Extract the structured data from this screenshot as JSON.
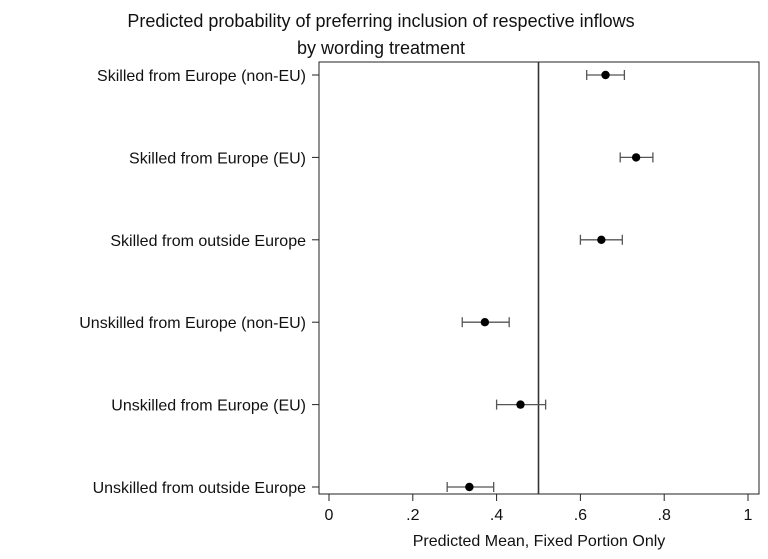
{
  "chart_data": {
    "type": "scatter",
    "title": "Predicted probability of preferring inclusion of respective inflows",
    "subtitle": "by wording treatment",
    "xlabel": "Predicted Mean, Fixed Portion Only",
    "ylabel": "",
    "xlim": [
      0,
      1
    ],
    "xticks": [
      0,
      0.2,
      0.4,
      0.6,
      0.8,
      1
    ],
    "xtick_labels": [
      "0",
      ".2",
      ".4",
      ".6",
      ".8",
      "1"
    ],
    "reference_line_x": 0.5,
    "grid": false,
    "legend": "none",
    "colors": {
      "marker": "#000000",
      "errorbar": "#555555",
      "axis": "#222222",
      "refline": "#333333"
    },
    "categories": [
      "Skilled from Europe (non-EU)",
      "Skilled from Europe (EU)",
      "Skilled from outside Europe",
      "Unskilled from Europe (non-EU)",
      "Unskilled from Europe (EU)",
      "Unskilled from outside Europe"
    ],
    "points": [
      {
        "category": "Skilled from Europe (non-EU)",
        "mean": 0.66,
        "lower": 0.615,
        "upper": 0.705
      },
      {
        "category": "Skilled from Europe (EU)",
        "mean": 0.733,
        "lower": 0.695,
        "upper": 0.773
      },
      {
        "category": "Skilled from outside Europe",
        "mean": 0.65,
        "lower": 0.6,
        "upper": 0.7
      },
      {
        "category": "Unskilled from Europe (non-EU)",
        "mean": 0.372,
        "lower": 0.318,
        "upper": 0.43
      },
      {
        "category": "Unskilled from Europe (EU)",
        "mean": 0.457,
        "lower": 0.4,
        "upper": 0.517
      },
      {
        "category": "Unskilled from outside Europe",
        "mean": 0.335,
        "lower": 0.282,
        "upper": 0.393
      }
    ]
  }
}
